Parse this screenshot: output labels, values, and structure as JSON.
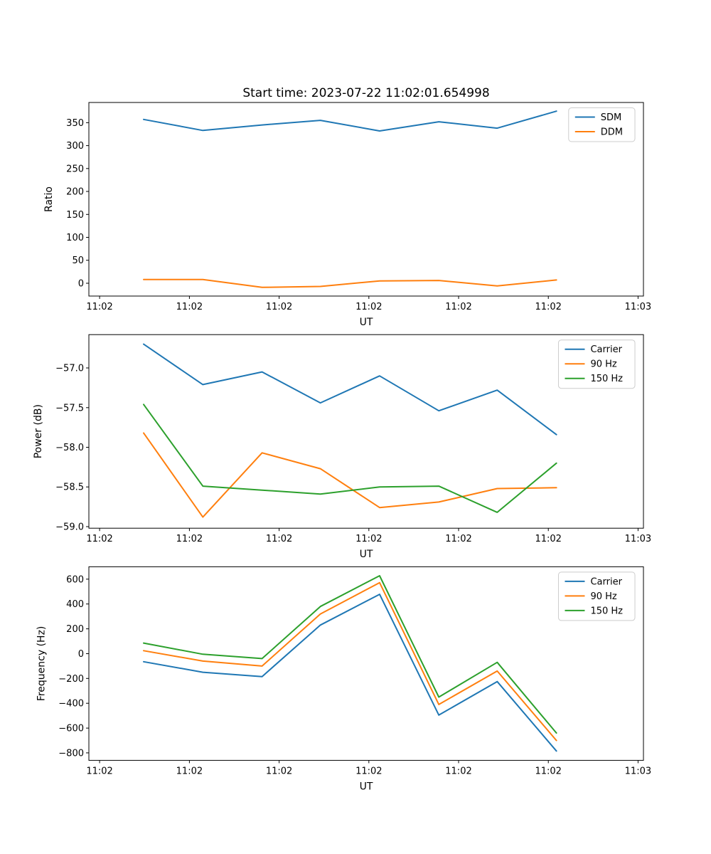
{
  "figure": {
    "background": "#ffffff",
    "title": "Start time: 2023-07-22 11:02:01.654998"
  },
  "chart_data": [
    {
      "key": "ratio",
      "type": "line",
      "title": "Start time: 2023-07-22 11:02:01.654998",
      "xlabel": "UT",
      "ylabel": "Ratio",
      "grid": false,
      "legend": {
        "position": "upper right",
        "entries": [
          "SDM",
          "DDM"
        ]
      },
      "x_seconds_after_11_02": [
        4.9,
        11.5,
        18.1,
        24.6,
        31.2,
        37.8,
        44.3,
        50.9
      ],
      "xlim_seconds": [
        -1.2,
        60.6
      ],
      "xticks_seconds": [
        0,
        10,
        20,
        30,
        40,
        50,
        60
      ],
      "xtick_labels": [
        "11:02",
        "11:02",
        "11:02",
        "11:02",
        "11:02",
        "11:02",
        "11:03"
      ],
      "ylim": [
        -28,
        394
      ],
      "ytick_values": [
        0,
        50,
        100,
        150,
        200,
        250,
        300,
        350
      ],
      "ytick_labels": [
        "0",
        "50",
        "100",
        "150",
        "200",
        "250",
        "300",
        "350"
      ],
      "series": [
        {
          "name": "SDM",
          "color": "#1f77b4",
          "values": [
            357,
            333,
            345,
            355,
            332,
            352,
            338,
            375
          ]
        },
        {
          "name": "DDM",
          "color": "#ff7f0e",
          "values": [
            8,
            8,
            -9,
            -7,
            5,
            6,
            -6,
            7
          ]
        }
      ]
    },
    {
      "key": "power",
      "type": "line",
      "title": "",
      "xlabel": "UT",
      "ylabel": "Power (dB)",
      "grid": false,
      "legend": {
        "position": "upper right",
        "entries": [
          "Carrier",
          "90 Hz",
          "150 Hz"
        ]
      },
      "x_seconds_after_11_02": [
        4.9,
        11.5,
        18.1,
        24.6,
        31.2,
        37.8,
        44.3,
        50.9
      ],
      "xlim_seconds": [
        -1.2,
        60.6
      ],
      "xticks_seconds": [
        0,
        10,
        20,
        30,
        40,
        50,
        60
      ],
      "xtick_labels": [
        "11:02",
        "11:02",
        "11:02",
        "11:02",
        "11:02",
        "11:02",
        "11:03"
      ],
      "ylim": [
        -59.02,
        -56.58
      ],
      "ytick_values": [
        -59.0,
        -58.5,
        -58.0,
        -57.5,
        -57.0
      ],
      "ytick_labels": [
        "−59.0",
        "−58.5",
        "−58.0",
        "−57.5",
        "−57.0"
      ],
      "series": [
        {
          "name": "Carrier",
          "color": "#1f77b4",
          "values": [
            -56.7,
            -57.21,
            -57.05,
            -57.44,
            -57.1,
            -57.54,
            -57.28,
            -57.84
          ]
        },
        {
          "name": "90 Hz",
          "color": "#ff7f0e",
          "values": [
            -57.82,
            -58.88,
            -58.07,
            -58.27,
            -58.76,
            -58.69,
            -58.52,
            -58.51
          ]
        },
        {
          "name": "150 Hz",
          "color": "#2ca02c",
          "values": [
            -57.46,
            -58.49,
            -58.54,
            -58.59,
            -58.5,
            -58.49,
            -58.82,
            -58.2
          ]
        }
      ]
    },
    {
      "key": "frequency",
      "type": "line",
      "title": "",
      "xlabel": "UT",
      "ylabel": "Frequency (Hz)",
      "grid": false,
      "legend": {
        "position": "upper right",
        "entries": [
          "Carrier",
          "90 Hz",
          "150 Hz"
        ]
      },
      "x_seconds_after_11_02": [
        4.9,
        11.5,
        18.1,
        24.6,
        31.2,
        37.8,
        44.3,
        50.9
      ],
      "xlim_seconds": [
        -1.2,
        60.6
      ],
      "xticks_seconds": [
        0,
        10,
        20,
        30,
        40,
        50,
        60
      ],
      "xtick_labels": [
        "11:02",
        "11:02",
        "11:02",
        "11:02",
        "11:02",
        "11:02",
        "11:03"
      ],
      "ylim": [
        -860,
        700
      ],
      "ytick_values": [
        -800,
        -600,
        -400,
        -200,
        0,
        200,
        400,
        600
      ],
      "ytick_labels": [
        "−800",
        "−600",
        "−400",
        "−200",
        "0",
        "200",
        "400",
        "600"
      ],
      "series": [
        {
          "name": "Carrier",
          "color": "#1f77b4",
          "values": [
            -65,
            -150,
            -185,
            230,
            478,
            -495,
            -225,
            -785
          ]
        },
        {
          "name": "90 Hz",
          "color": "#ff7f0e",
          "values": [
            24,
            -60,
            -100,
            320,
            572,
            -410,
            -140,
            -700
          ]
        },
        {
          "name": "150 Hz",
          "color": "#2ca02c",
          "values": [
            85,
            -5,
            -40,
            380,
            628,
            -350,
            -70,
            -640
          ]
        }
      ]
    }
  ]
}
